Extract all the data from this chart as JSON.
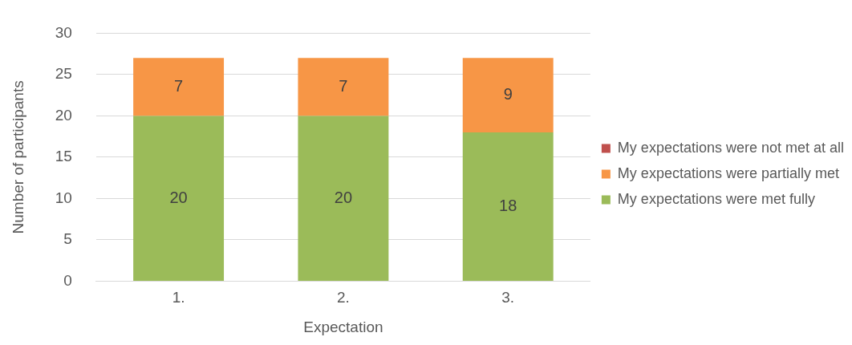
{
  "chart_data": {
    "type": "bar",
    "stacked": true,
    "xlabel": "Expectation",
    "ylabel": "Number of participants",
    "categories": [
      "1.",
      "2.",
      "3."
    ],
    "series": [
      {
        "name": "My expectations were met fully",
        "color": "#9bbb59",
        "values": [
          20,
          20,
          18
        ],
        "value_labels": [
          "20",
          "20",
          "18"
        ]
      },
      {
        "name": "My expectations were partially met",
        "color": "#f79646",
        "values": [
          7,
          7,
          9
        ],
        "value_labels": [
          "7",
          "7",
          "9"
        ]
      },
      {
        "name": "My expectations were not met at all",
        "color": "#c0504d",
        "values": [
          0,
          0,
          0
        ],
        "value_labels": [
          null,
          null,
          null
        ]
      }
    ],
    "ylim": [
      0,
      30
    ],
    "yticks": [
      0,
      5,
      10,
      15,
      20,
      25,
      30
    ],
    "grid": "y",
    "legend": "right"
  }
}
